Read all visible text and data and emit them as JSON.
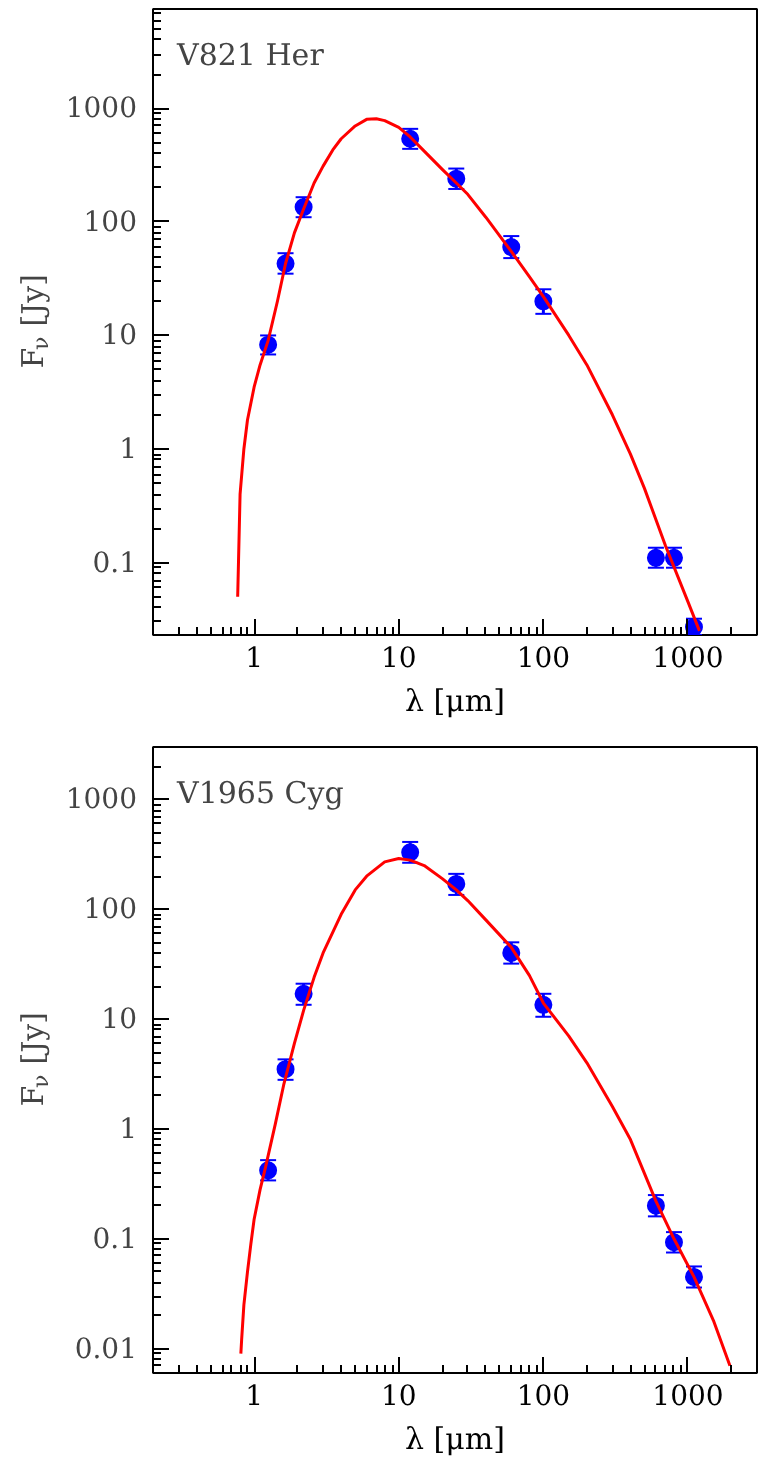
{
  "chart_data": [
    {
      "type": "scatter",
      "annotations": [
        "V821 Her"
      ],
      "xlabel": "λ [μm]",
      "ylabel": "F$_{ν}$ [Jy]",
      "log": "xy",
      "grid": false,
      "xlim": [
        0.2,
        3000
      ],
      "ylim": [
        0.023,
        7500
      ],
      "xticks": [
        1,
        10,
        100,
        1000
      ],
      "yticks": [
        0.1,
        1,
        10,
        100,
        1000
      ],
      "series": [
        {
          "type": "scatter",
          "marker": "circle",
          "color": "#0000ff",
          "x": [
            1.25,
            1.65,
            2.2,
            12,
            25,
            60,
            100,
            600,
            800,
            1100
          ],
          "values": [
            8.3,
            43,
            135,
            540,
            240,
            60,
            20,
            0.11,
            0.11,
            0.027
          ],
          "errors": [
            [
              6.8,
              10
            ],
            [
              35,
              53
            ],
            [
              110,
              165
            ],
            [
              440,
              660
            ],
            [
              195,
              295
            ],
            [
              48,
              75
            ],
            [
              15.5,
              25.5
            ],
            [
              0.09,
              0.135
            ],
            [
              0.09,
              0.135
            ],
            [
              0.023,
              0.032
            ]
          ]
        },
        {
          "type": "line",
          "color": "#ff0000",
          "x": [
            0.77,
            0.78,
            0.8,
            0.85,
            0.9,
            1.0,
            1.1,
            1.25,
            1.45,
            1.65,
            1.9,
            2.2,
            2.6,
            3,
            3.5,
            4,
            5,
            6,
            7,
            8,
            10,
            12,
            15,
            20,
            25,
            30,
            40,
            60,
            80,
            100,
            150,
            200,
            300,
            400,
            500,
            700,
            1000,
            1200
          ],
          "values": [
            0.05,
            0.1,
            0.4,
            1.0,
            1.8,
            3.5,
            5.5,
            9,
            20,
            43,
            80,
            130,
            220,
            310,
            430,
            540,
            700,
            800,
            810,
            780,
            680,
            560,
            420,
            290,
            220,
            175,
            110,
            55,
            33,
            22,
            10,
            5.5,
            2.0,
            0.9,
            0.45,
            0.14,
            0.045,
            0.025
          ]
        }
      ]
    },
    {
      "type": "scatter",
      "annotations": [
        "V1965 Cyg"
      ],
      "xlabel": "λ [μm]",
      "ylabel": "F$_{ν}$ [Jy]",
      "log": "xy",
      "grid": false,
      "xlim": [
        0.2,
        3000
      ],
      "ylim": [
        0.006,
        3000
      ],
      "xticks": [
        1,
        10,
        100,
        1000
      ],
      "yticks": [
        0.01,
        0.1,
        1,
        10,
        100,
        1000
      ],
      "series": [
        {
          "type": "scatter",
          "marker": "circle",
          "color": "#0000ff",
          "x": [
            1.25,
            1.65,
            2.2,
            12,
            25,
            60,
            100,
            600,
            800,
            1100
          ],
          "values": [
            0.42,
            3.5,
            17,
            330,
            170,
            40,
            13.5,
            0.2,
            0.093,
            0.045
          ],
          "errors": [
            [
              0.34,
              0.52
            ],
            [
              2.8,
              4.3
            ],
            [
              13.5,
              21
            ],
            [
              265,
              410
            ],
            [
              135,
              210
            ],
            [
              32,
              50
            ],
            [
              10.5,
              17
            ],
            [
              0.16,
              0.25
            ],
            [
              0.075,
              0.115
            ],
            [
              0.036,
              0.056
            ]
          ]
        },
        {
          "type": "line",
          "color": "#ff0000",
          "x": [
            0.81,
            0.82,
            0.85,
            0.9,
            0.95,
            1.0,
            1.1,
            1.2,
            1.4,
            1.6,
            1.9,
            2.2,
            2.6,
            3,
            4,
            5,
            6,
            8,
            10,
            12,
            15,
            20,
            25,
            30,
            40,
            60,
            80,
            100,
            150,
            200,
            300,
            400,
            600,
            800,
            1100,
            1500,
            1950
          ],
          "values": [
            0.009,
            0.012,
            0.025,
            0.05,
            0.09,
            0.15,
            0.28,
            0.45,
            1.1,
            2.5,
            6,
            12,
            24,
            40,
            90,
            150,
            200,
            270,
            290,
            280,
            250,
            190,
            150,
            120,
            80,
            45,
            25,
            14,
            7,
            4,
            1.6,
            0.8,
            0.22,
            0.1,
            0.045,
            0.018,
            0.007
          ]
        }
      ]
    }
  ]
}
